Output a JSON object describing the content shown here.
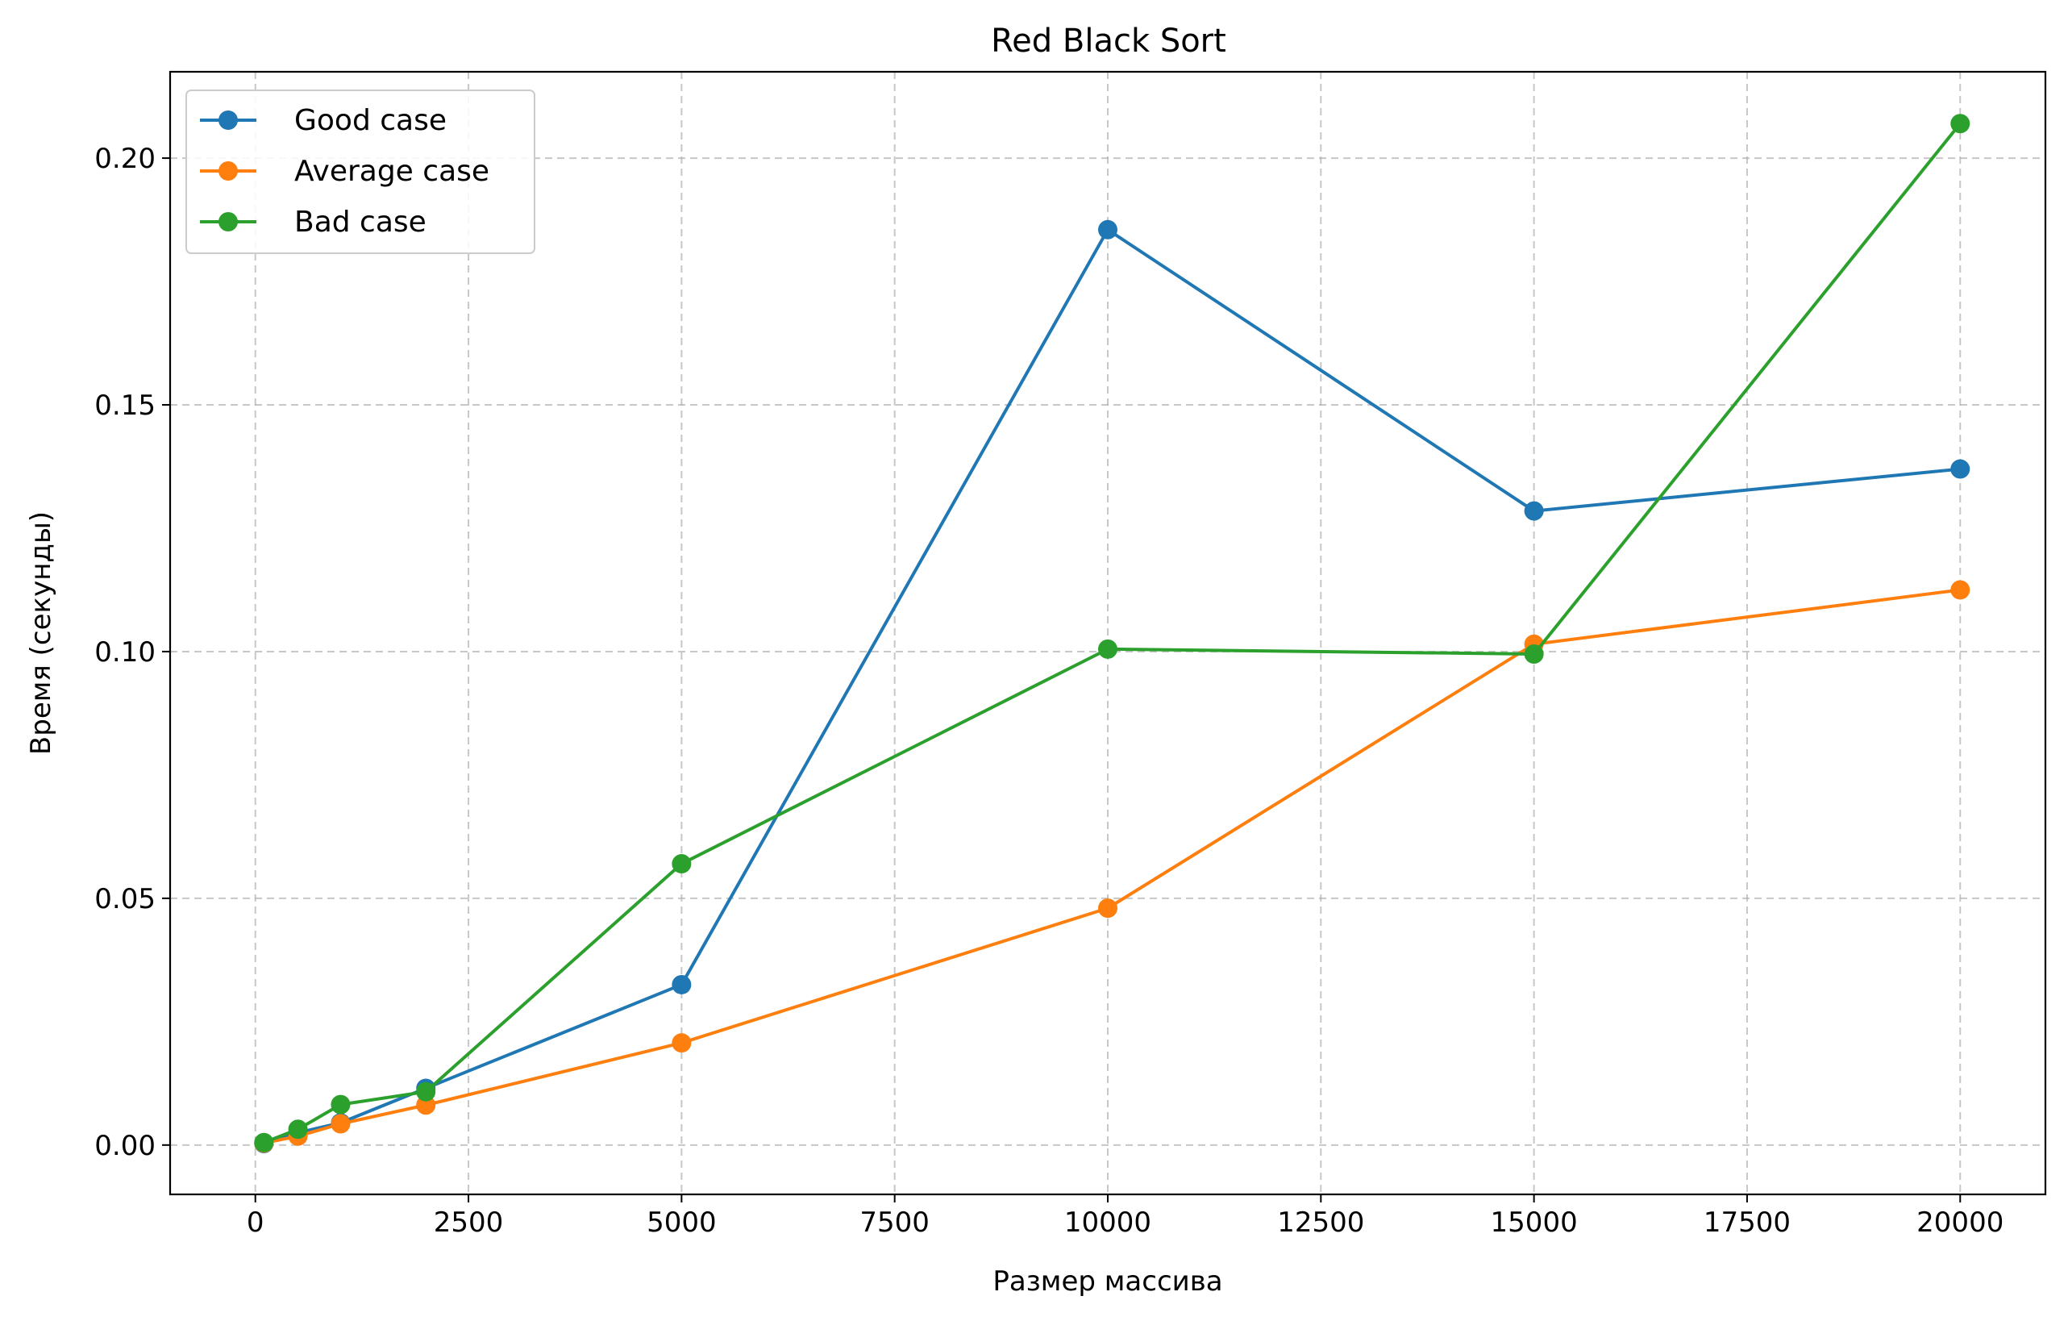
{
  "chart_data": {
    "type": "line",
    "title": "Red Black Sort",
    "xlabel": "Размер массива",
    "ylabel": "Время (секунды)",
    "xlim": [
      -1000,
      21000
    ],
    "ylim": [
      -0.01,
      0.2175
    ],
    "xticks": [
      0,
      2500,
      5000,
      7500,
      10000,
      12500,
      15000,
      17500,
      20000
    ],
    "yticks": [
      0.0,
      0.05,
      0.1,
      0.15,
      0.2
    ],
    "ytick_labels": [
      "0.00",
      "0.05",
      "0.10",
      "0.15",
      "0.20"
    ],
    "grid": true,
    "legend_position": "top-left",
    "x": [
      100,
      500,
      1000,
      2000,
      5000,
      10000,
      15000,
      20000
    ],
    "series": [
      {
        "name": "Good case",
        "color": "#1f77b4",
        "values": [
          0.0003,
          0.0025,
          0.0045,
          0.0115,
          0.0325,
          0.1855,
          0.1285,
          0.137
        ]
      },
      {
        "name": "Average case",
        "color": "#ff7f0e",
        "values": [
          0.0004,
          0.0018,
          0.0043,
          0.0081,
          0.0207,
          0.048,
          0.1015,
          0.1125
        ]
      },
      {
        "name": "Bad case",
        "color": "#2ca02c",
        "values": [
          0.0005,
          0.0032,
          0.0082,
          0.0108,
          0.057,
          0.1005,
          0.0995,
          0.207
        ]
      }
    ]
  }
}
